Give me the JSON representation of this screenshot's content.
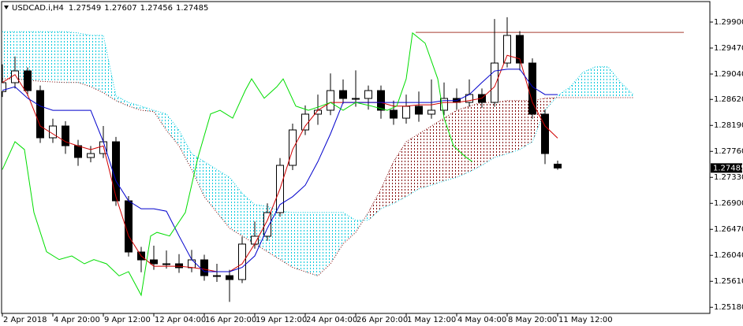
{
  "chart_data": {
    "type": "candlestick",
    "symbol": "USDCAD.i,H4",
    "xlim": [
      -0.75,
      224.25
    ],
    "ylim": [
      1.25079,
      1.30239
    ],
    "xticks": [
      {
        "value": 0,
        "label": "2 Apr 2018"
      },
      {
        "value": 16,
        "label": "4 Apr 20:00"
      },
      {
        "value": 32,
        "label": "9 Apr 12:00"
      },
      {
        "value": 48,
        "label": "12 Apr 04:00"
      },
      {
        "value": 64,
        "label": "16 Apr 20:00"
      },
      {
        "value": 80,
        "label": "19 Apr 12:00"
      },
      {
        "value": 96,
        "label": "24 Apr 04:00"
      },
      {
        "value": 112,
        "label": "26 Apr 20:00"
      },
      {
        "value": 128,
        "label": "1 May 12:00"
      },
      {
        "value": 144,
        "label": "4 May 04:00"
      },
      {
        "value": 160,
        "label": "8 May 20:00"
      },
      {
        "value": 176,
        "label": "11 May 12:00"
      }
    ],
    "yticks": [
      {
        "value": 1.299,
        "label": "1.29900"
      },
      {
        "value": 1.2947,
        "label": "1.29470"
      },
      {
        "value": 1.2904,
        "label": "1.29040"
      },
      {
        "value": 1.2862,
        "label": "1.28620"
      },
      {
        "value": 1.2819,
        "label": "1.28190"
      },
      {
        "value": 1.2776,
        "label": "1.27760"
      },
      {
        "value": 1.2733,
        "label": "1.27330"
      },
      {
        "value": 1.269,
        "label": "1.26900"
      },
      {
        "value": 1.2647,
        "label": "1.26470"
      },
      {
        "value": 1.2604,
        "label": "1.26040"
      },
      {
        "value": 1.2561,
        "label": "1.25610"
      },
      {
        "value": 1.2518,
        "label": "1.25180"
      }
    ],
    "x": [
      0,
      4,
      8,
      12,
      16,
      20,
      24,
      28,
      32,
      36,
      40,
      44,
      48,
      52,
      56,
      60,
      64,
      68,
      72,
      76,
      80,
      84,
      88,
      92,
      96,
      100,
      104,
      108,
      112,
      116,
      120,
      124,
      128,
      132,
      136,
      140,
      144,
      148,
      152,
      156,
      160,
      164,
      168,
      172,
      176
    ],
    "open": [
      1.2875,
      1.28897,
      1.29092,
      1.28766,
      1.27985,
      1.2818,
      1.27854,
      1.27659,
      1.27724,
      1.27919,
      1.26942,
      1.26095,
      1.25965,
      1.259,
      1.259,
      1.25835,
      1.25965,
      1.25704,
      1.25704,
      1.25639,
      1.26226,
      1.26356,
      1.26747,
      1.27529,
      1.28115,
      1.28376,
      1.28441,
      1.28766,
      1.28636,
      1.28636,
      1.28766,
      1.28441,
      1.2831,
      1.28506,
      1.28376,
      1.28441,
      1.28636,
      1.28571,
      1.28701,
      1.28571,
      1.29222,
      1.29679,
      1.29222,
      1.28376,
      1.27549
    ],
    "high": [
      1.292,
      1.2933,
      1.2915,
      1.2885,
      1.283,
      1.2826,
      1.2795,
      1.2785,
      1.2818,
      1.28,
      1.2702,
      1.2618,
      1.262,
      1.2612,
      1.2606,
      1.2613,
      1.2605,
      1.259,
      1.258,
      1.2635,
      1.266,
      1.269,
      1.2765,
      1.2822,
      1.2852,
      1.287,
      1.2905,
      1.2895,
      1.291,
      1.2885,
      1.2885,
      1.286,
      1.287,
      1.2875,
      1.2895,
      1.289,
      1.288,
      1.2895,
      1.288,
      1.2995,
      1.2998,
      1.2975,
      1.293,
      1.2845,
      1.27607
    ],
    "low": [
      1.2866,
      1.288,
      1.2868,
      1.279,
      1.279,
      1.2772,
      1.2752,
      1.2758,
      1.2765,
      1.2686,
      1.2602,
      1.2576,
      1.258,
      1.2582,
      1.2575,
      1.2576,
      1.2562,
      1.256,
      1.2527,
      1.2558,
      1.2615,
      1.2628,
      1.2668,
      1.2745,
      1.2803,
      1.282,
      1.2836,
      1.2855,
      1.285,
      1.2845,
      1.283,
      1.282,
      1.2822,
      1.2825,
      1.283,
      1.2836,
      1.2845,
      1.285,
      1.2848,
      1.285,
      1.2915,
      1.291,
      1.283,
      1.2755,
      1.27456
    ],
    "close": [
      1.28897,
      1.29092,
      1.28766,
      1.27985,
      1.2818,
      1.27854,
      1.27659,
      1.27724,
      1.27919,
      1.26942,
      1.26095,
      1.25965,
      1.259,
      1.259,
      1.25835,
      1.25965,
      1.25704,
      1.25704,
      1.25639,
      1.26226,
      1.26356,
      1.26747,
      1.27529,
      1.28115,
      1.28376,
      1.28441,
      1.28766,
      1.28636,
      1.28636,
      1.28766,
      1.28441,
      1.2831,
      1.28506,
      1.28376,
      1.28441,
      1.28636,
      1.28571,
      1.28701,
      1.28571,
      1.29222,
      1.29679,
      1.29222,
      1.28376,
      1.27724,
      1.27485
    ],
    "candle_colors": {
      "up": "#ffffff",
      "down": "#000000",
      "outline": "#000000"
    },
    "lines": [
      {
        "color": "#d00000",
        "x": [
          0,
          4,
          8,
          12,
          16,
          20,
          24,
          28,
          32,
          36,
          40,
          44,
          48,
          52,
          56,
          60,
          64,
          68,
          72,
          76,
          80,
          84,
          88,
          92,
          96,
          100,
          104,
          108,
          112,
          116,
          120,
          124,
          128,
          132,
          136,
          140,
          144,
          148,
          152,
          156,
          160,
          164,
          168,
          172,
          176
        ],
        "values": [
          1.289,
          1.2903,
          1.287,
          1.2818,
          1.2805,
          1.2792,
          1.2785,
          1.2779,
          1.2785,
          1.2701,
          1.2636,
          1.2603,
          1.2586,
          1.2586,
          1.2586,
          1.2584,
          1.2581,
          1.2577,
          1.2577,
          1.259,
          1.2623,
          1.2662,
          1.2714,
          1.2779,
          1.2818,
          1.2844,
          1.2857,
          1.2857,
          1.2857,
          1.2857,
          1.2857,
          1.2851,
          1.2851,
          1.2853,
          1.2853,
          1.2857,
          1.2857,
          1.286,
          1.2864,
          1.2883,
          1.2935,
          1.2929,
          1.2857,
          1.2818,
          1.2798
        ]
      },
      {
        "color": "#0000cc",
        "x": [
          0,
          4,
          8,
          12,
          16,
          20,
          24,
          28,
          32,
          36,
          40,
          44,
          48,
          52,
          56,
          60,
          64,
          68,
          72,
          76,
          80,
          84,
          88,
          92,
          96,
          100,
          104,
          108,
          112,
          116,
          120,
          124,
          128,
          132,
          136,
          140,
          144,
          148,
          152,
          156,
          160,
          164,
          168,
          172,
          176
        ],
        "values": [
          1.2877,
          1.2883,
          1.2864,
          1.2851,
          1.2844,
          1.2844,
          1.2844,
          1.2844,
          1.2792,
          1.2727,
          1.2694,
          1.2681,
          1.2681,
          1.2677,
          1.2636,
          1.2597,
          1.2577,
          1.2577,
          1.2577,
          1.2584,
          1.2603,
          1.2649,
          1.2688,
          1.2701,
          1.272,
          1.2759,
          1.2805,
          1.2857,
          1.2857,
          1.2857,
          1.2857,
          1.2857,
          1.2857,
          1.2857,
          1.2857,
          1.286,
          1.286,
          1.287,
          1.289,
          1.2909,
          1.2912,
          1.2912,
          1.2883,
          1.287,
          1.287
        ]
      },
      {
        "color": "#00dd00",
        "x": [
          0,
          4,
          7,
          10,
          14,
          18,
          22,
          26,
          29,
          33,
          37,
          40,
          44,
          47,
          49,
          53,
          58,
          62,
          66,
          69,
          73,
          77,
          79,
          83,
          87,
          89,
          93,
          97,
          101,
          104,
          108,
          112,
          117,
          122,
          125,
          128,
          130,
          134,
          138,
          140,
          143,
          147,
          149
        ],
        "values": [
          1.2746,
          1.2792,
          1.2779,
          1.2675,
          1.261,
          1.2597,
          1.2603,
          1.259,
          1.2597,
          1.259,
          1.257,
          1.2577,
          1.2538,
          1.2636,
          1.2642,
          1.2636,
          1.2675,
          1.2766,
          1.2838,
          1.2844,
          1.2831,
          1.2877,
          1.2896,
          1.2864,
          1.2883,
          1.2896,
          1.2851,
          1.2844,
          1.2851,
          1.2857,
          1.2844,
          1.2857,
          1.2851,
          1.2844,
          1.2851,
          1.2896,
          1.2972,
          1.2955,
          1.2896,
          1.2831,
          1.2785,
          1.2766,
          1.2759
        ]
      }
    ],
    "cloud": {
      "x": [
        0,
        4,
        8,
        12,
        16,
        20,
        24,
        28,
        32,
        36,
        40,
        44,
        48,
        52,
        56,
        60,
        64,
        68,
        72,
        76,
        80,
        84,
        88,
        92,
        96,
        100,
        104,
        108,
        112,
        116,
        120,
        124,
        128,
        132,
        136,
        140,
        144,
        148,
        152,
        156,
        160,
        164,
        168,
        172,
        176,
        180,
        184,
        188,
        192,
        196,
        200
      ],
      "span_a": {
        "color": "#00c8dc",
        "values": [
          1.2974,
          1.2974,
          1.2974,
          1.2974,
          1.2974,
          1.2974,
          1.2972,
          1.2968,
          1.2968,
          1.2868,
          1.2857,
          1.2851,
          1.2844,
          1.2838,
          1.2811,
          1.2772,
          1.2759,
          1.2746,
          1.2733,
          1.2707,
          1.2688,
          1.2685,
          1.2677,
          1.2675,
          1.2675,
          1.2675,
          1.2675,
          1.2675,
          1.2662,
          1.2662,
          1.2681,
          1.269,
          1.2701,
          1.2714,
          1.272,
          1.2727,
          1.2733,
          1.2742,
          1.2753,
          1.2766,
          1.2772,
          1.2779,
          1.2792,
          1.2844,
          1.2868,
          1.2883,
          1.2907,
          1.2916,
          1.2916,
          1.289,
          1.287
        ]
      },
      "span_b": {
        "color": "#800000",
        "values": [
          1.2896,
          1.2896,
          1.2894,
          1.2892,
          1.2891,
          1.289,
          1.289,
          1.2883,
          1.2873,
          1.286,
          1.2851,
          1.2844,
          1.2842,
          1.2811,
          1.2785,
          1.2746,
          1.2701,
          1.2675,
          1.2649,
          1.2636,
          1.2623,
          1.261,
          1.2597,
          1.2584,
          1.2577,
          1.257,
          1.259,
          1.2623,
          1.2642,
          1.2675,
          1.2714,
          1.2759,
          1.2792,
          1.2805,
          1.2818,
          1.2831,
          1.2844,
          1.2851,
          1.2857,
          1.2857,
          1.286,
          1.286,
          1.286,
          1.2864,
          1.2865,
          1.2865,
          1.2865,
          1.2865,
          1.2865,
          1.2865,
          1.2865
        ]
      }
    },
    "hline": {
      "value": 1.2973,
      "x": [
        131,
        216
      ],
      "color": "#a83c32"
    }
  }
}
